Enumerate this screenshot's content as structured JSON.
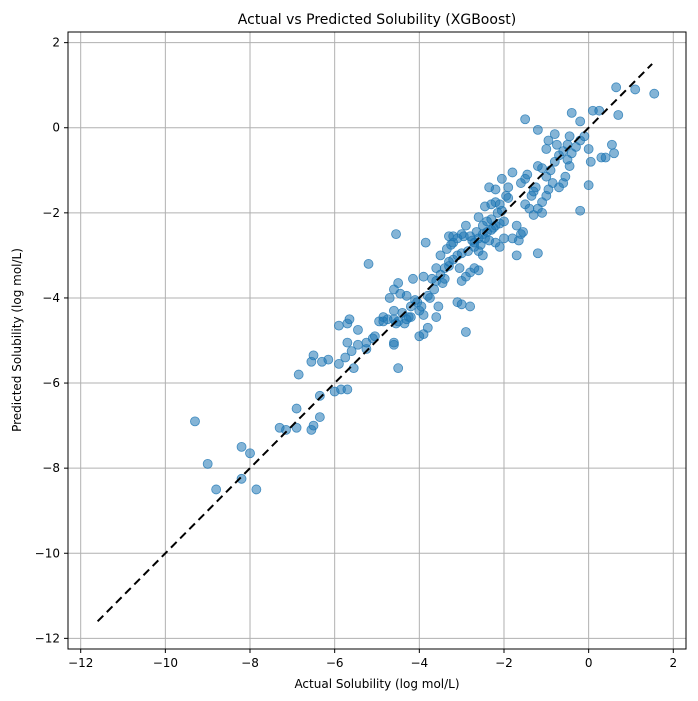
{
  "chart_data": {
    "type": "scatter",
    "title": "Actual vs Predicted Solubility (XGBoost)",
    "xlabel": "Actual Solubility (log mol/L)",
    "ylabel": "Predicted Solubility (log mol/L)",
    "xlim": [
      -12.3,
      2.3
    ],
    "ylim": [
      -12.25,
      2.25
    ],
    "xticks": [
      -12,
      -10,
      -8,
      -6,
      -4,
      -2,
      0,
      2
    ],
    "yticks": [
      -12,
      -10,
      -8,
      -6,
      -4,
      -2,
      0,
      2
    ],
    "xtick_labels": [
      "−12",
      "−10",
      "−8",
      "−6",
      "−4",
      "−2",
      "0",
      "2"
    ],
    "ytick_labels": [
      "−12",
      "−10",
      "−8",
      "−6",
      "−4",
      "−2",
      "0",
      "2"
    ],
    "grid": true,
    "marker_color": "#1f77b4",
    "marker_alpha": 0.55,
    "reference_line": {
      "x": [
        -11.6,
        1.5
      ],
      "y": [
        -11.6,
        1.5
      ],
      "style": "dashed",
      "color": "#000000"
    },
    "points": [
      [
        -9.3,
        -6.9
      ],
      [
        -9.0,
        -7.9
      ],
      [
        -8.8,
        -8.5
      ],
      [
        -8.2,
        -7.5
      ],
      [
        -8.2,
        -8.25
      ],
      [
        -8.0,
        -7.65
      ],
      [
        -7.85,
        -8.5
      ],
      [
        -7.3,
        -7.05
      ],
      [
        -7.15,
        -7.1
      ],
      [
        -6.9,
        -6.6
      ],
      [
        -6.9,
        -7.05
      ],
      [
        -6.85,
        -5.8
      ],
      [
        -6.55,
        -7.1
      ],
      [
        -6.5,
        -7.0
      ],
      [
        -6.35,
        -6.8
      ],
      [
        -6.35,
        -6.3
      ],
      [
        -6.55,
        -5.5
      ],
      [
        -6.5,
        -5.35
      ],
      [
        -6.3,
        -5.5
      ],
      [
        -6.15,
        -5.45
      ],
      [
        -6.0,
        -6.2
      ],
      [
        -5.85,
        -6.15
      ],
      [
        -5.7,
        -6.15
      ],
      [
        -5.9,
        -5.55
      ],
      [
        -5.75,
        -5.4
      ],
      [
        -5.55,
        -5.65
      ],
      [
        -5.6,
        -5.25
      ],
      [
        -5.45,
        -5.1
      ],
      [
        -5.25,
        -5.05
      ],
      [
        -5.1,
        -4.95
      ],
      [
        -5.9,
        -4.65
      ],
      [
        -5.7,
        -4.6
      ],
      [
        -5.65,
        -4.5
      ],
      [
        -5.7,
        -5.05
      ],
      [
        -5.2,
        -3.2
      ],
      [
        -4.95,
        -4.55
      ],
      [
        -4.85,
        -4.45
      ],
      [
        -4.7,
        -4.0
      ],
      [
        -4.6,
        -3.8
      ],
      [
        -4.5,
        -3.65
      ],
      [
        -4.6,
        -4.3
      ],
      [
        -4.6,
        -4.5
      ],
      [
        -4.5,
        -4.55
      ],
      [
        -4.4,
        -4.35
      ],
      [
        -4.3,
        -4.5
      ],
      [
        -4.2,
        -4.2
      ],
      [
        -4.1,
        -4.05
      ],
      [
        -4.0,
        -4.3
      ],
      [
        -3.9,
        -4.4
      ],
      [
        -4.55,
        -2.5
      ],
      [
        -4.6,
        -5.05
      ],
      [
        -4.6,
        -5.1
      ],
      [
        -4.5,
        -5.65
      ],
      [
        -4.0,
        -4.9
      ],
      [
        -3.9,
        -4.85
      ],
      [
        -3.8,
        -4.7
      ],
      [
        -3.6,
        -4.45
      ],
      [
        -3.55,
        -4.2
      ],
      [
        -3.75,
        -4.0
      ],
      [
        -3.9,
        -3.5
      ],
      [
        -3.95,
        -4.2
      ],
      [
        -3.7,
        -3.55
      ],
      [
        -3.6,
        -3.6
      ],
      [
        -3.5,
        -3.45
      ],
      [
        -3.4,
        -3.3
      ],
      [
        -3.3,
        -3.25
      ],
      [
        -3.2,
        -3.1
      ],
      [
        -3.1,
        -3.0
      ],
      [
        -3.0,
        -2.95
      ],
      [
        -3.85,
        -2.7
      ],
      [
        -3.5,
        -3.0
      ],
      [
        -3.3,
        -2.55
      ],
      [
        -3.2,
        -2.55
      ],
      [
        -3.1,
        -2.6
      ],
      [
        -3.0,
        -2.5
      ],
      [
        -3.25,
        -2.75
      ],
      [
        -3.05,
        -3.3
      ],
      [
        -3.0,
        -3.6
      ],
      [
        -2.9,
        -3.5
      ],
      [
        -2.8,
        -3.4
      ],
      [
        -3.1,
        -4.1
      ],
      [
        -3.0,
        -4.15
      ],
      [
        -2.8,
        -4.2
      ],
      [
        -2.9,
        -4.8
      ],
      [
        -2.9,
        -2.3
      ],
      [
        -2.8,
        -2.55
      ],
      [
        -2.7,
        -2.7
      ],
      [
        -2.6,
        -2.6
      ],
      [
        -2.5,
        -2.5
      ],
      [
        -2.4,
        -2.45
      ],
      [
        -2.3,
        -2.4
      ],
      [
        -2.2,
        -2.3
      ],
      [
        -2.1,
        -2.25
      ],
      [
        -2.0,
        -2.2
      ],
      [
        -2.7,
        -2.8
      ],
      [
        -2.6,
        -2.9
      ],
      [
        -2.5,
        -3.0
      ],
      [
        -2.6,
        -3.35
      ],
      [
        -2.7,
        -3.3
      ],
      [
        -2.75,
        -2.65
      ],
      [
        -2.5,
        -2.3
      ],
      [
        -2.4,
        -2.2
      ],
      [
        -2.3,
        -2.15
      ],
      [
        -2.2,
        -2.7
      ],
      [
        -2.1,
        -2.8
      ],
      [
        -2.0,
        -2.6
      ],
      [
        -2.6,
        -2.1
      ],
      [
        -2.45,
        -1.85
      ],
      [
        -2.3,
        -1.8
      ],
      [
        -2.2,
        -1.75
      ],
      [
        -2.35,
        -1.4
      ],
      [
        -2.2,
        -1.45
      ],
      [
        -2.1,
        -1.8
      ],
      [
        -2.05,
        -1.2
      ],
      [
        -1.9,
        -1.65
      ],
      [
        -1.8,
        -2.6
      ],
      [
        -1.7,
        -2.3
      ],
      [
        -1.65,
        -2.65
      ],
      [
        -1.6,
        -2.5
      ],
      [
        -1.55,
        -2.45
      ],
      [
        -1.7,
        -3.0
      ],
      [
        -1.2,
        -2.95
      ],
      [
        -1.5,
        -1.2
      ],
      [
        -1.45,
        -1.1
      ],
      [
        -1.4,
        -1.9
      ],
      [
        -1.5,
        -1.8
      ],
      [
        -1.35,
        -1.6
      ],
      [
        -1.3,
        -1.5
      ],
      [
        -1.25,
        -1.4
      ],
      [
        -1.2,
        -0.9
      ],
      [
        -1.3,
        -2.05
      ],
      [
        -1.2,
        -1.9
      ],
      [
        -1.1,
        -2.0
      ],
      [
        -1.1,
        -0.95
      ],
      [
        -1.0,
        -1.15
      ],
      [
        -0.9,
        -1.0
      ],
      [
        -0.8,
        -0.8
      ],
      [
        -0.7,
        -0.65
      ],
      [
        -0.6,
        -0.55
      ],
      [
        -0.5,
        -0.4
      ],
      [
        -1.1,
        -1.75
      ],
      [
        -1.0,
        -1.6
      ],
      [
        -0.95,
        -1.45
      ],
      [
        -0.85,
        -1.3
      ],
      [
        -0.7,
        -1.4
      ],
      [
        -0.6,
        -1.3
      ],
      [
        -0.55,
        -1.15
      ],
      [
        -0.45,
        -0.9
      ],
      [
        -0.5,
        -0.75
      ],
      [
        -0.4,
        -0.6
      ],
      [
        -0.3,
        -0.45
      ],
      [
        -0.2,
        -0.3
      ],
      [
        -0.1,
        -0.2
      ],
      [
        0.0,
        -0.5
      ],
      [
        0.05,
        -0.8
      ],
      [
        0.0,
        -1.35
      ],
      [
        -0.2,
        -1.95
      ],
      [
        -0.95,
        -0.3
      ],
      [
        -0.75,
        -0.4
      ],
      [
        -0.45,
        -0.2
      ],
      [
        -1.2,
        -0.05
      ],
      [
        -0.4,
        0.35
      ],
      [
        -0.2,
        0.15
      ],
      [
        0.1,
        0.4
      ],
      [
        0.25,
        0.4
      ],
      [
        0.3,
        -0.7
      ],
      [
        0.4,
        -0.7
      ],
      [
        0.55,
        -0.4
      ],
      [
        0.6,
        -0.6
      ],
      [
        0.7,
        0.3
      ],
      [
        0.65,
        0.95
      ],
      [
        1.1,
        0.9
      ],
      [
        1.55,
        0.8
      ],
      [
        -1.5,
        0.2
      ],
      [
        -1.0,
        -0.5
      ],
      [
        -0.8,
        -0.15
      ],
      [
        -1.6,
        -1.3
      ],
      [
        -1.8,
        -1.05
      ],
      [
        -1.9,
        -1.4
      ],
      [
        -1.95,
        -1.6
      ],
      [
        -2.05,
        -1.95
      ],
      [
        -2.15,
        -2.0
      ],
      [
        -2.25,
        -2.35
      ],
      [
        -2.45,
        -2.6
      ],
      [
        -2.55,
        -2.75
      ],
      [
        -2.65,
        -2.45
      ],
      [
        -2.85,
        -2.9
      ],
      [
        -3.3,
        -3.15
      ],
      [
        -3.45,
        -3.65
      ],
      [
        -3.65,
        -3.8
      ],
      [
        -3.8,
        -3.95
      ],
      [
        -4.05,
        -4.1
      ],
      [
        -4.25,
        -4.45
      ],
      [
        -4.35,
        -4.6
      ],
      [
        -4.75,
        -4.5
      ],
      [
        -4.85,
        -4.55
      ],
      [
        -5.05,
        -4.9
      ],
      [
        -5.25,
        -5.2
      ],
      [
        -5.45,
        -4.75
      ],
      [
        -4.45,
        -3.9
      ],
      [
        -4.15,
        -3.55
      ],
      [
        -3.6,
        -3.3
      ],
      [
        -3.35,
        -2.85
      ],
      [
        -3.2,
        -2.7
      ],
      [
        -2.95,
        -2.55
      ],
      [
        -3.4,
        -3.55
      ],
      [
        -4.2,
        -4.45
      ],
      [
        -4.3,
        -3.95
      ],
      [
        -4.55,
        -4.6
      ],
      [
        -2.35,
        -2.65
      ]
    ]
  }
}
